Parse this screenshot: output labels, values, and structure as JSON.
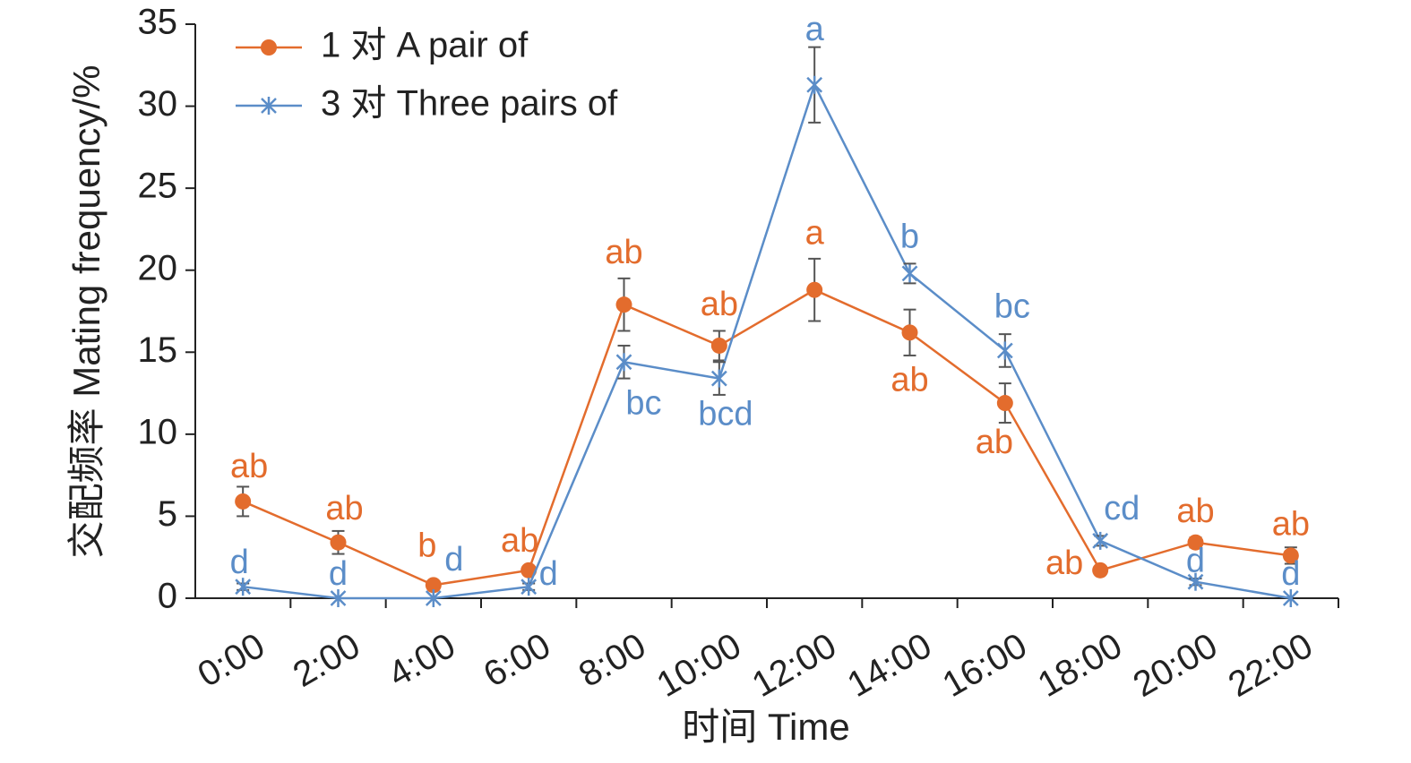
{
  "chart_data": {
    "type": "line",
    "x_label": "时间 Time",
    "y_label": "交配频率 Mating frequency/%",
    "categories": [
      "0:00",
      "2:00",
      "4:00",
      "6:00",
      "8:00",
      "10:00",
      "12:00",
      "14:00",
      "16:00",
      "18:00",
      "20:00",
      "22:00"
    ],
    "ylim": [
      0,
      35
    ],
    "yticks": [
      0,
      5,
      10,
      15,
      20,
      25,
      30,
      35
    ],
    "legend": "top-left",
    "series": [
      {
        "name": "1 对 A pair of",
        "color": "#e36c2d",
        "marker": "circle",
        "values": [
          5.9,
          3.4,
          0.8,
          1.7,
          17.9,
          15.4,
          18.8,
          16.2,
          11.9,
          1.7,
          3.4,
          2.6
        ],
        "errors": [
          0.9,
          0.7,
          0.2,
          0.2,
          1.6,
          0.9,
          1.9,
          1.4,
          1.2,
          0.2,
          0.3,
          0.5
        ],
        "labels": [
          "ab",
          "ab",
          "b",
          "ab",
          "ab",
          "ab",
          "a",
          "ab",
          "ab",
          "ab",
          "ab",
          "ab"
        ]
      },
      {
        "name": "3 对 Three pairs of",
        "color": "#5b8dc8",
        "marker": "asterisk",
        "values": [
          0.7,
          0,
          0,
          0.7,
          14.4,
          13.4,
          31.3,
          19.8,
          15.1,
          3.5,
          1.0,
          0
        ],
        "errors": [
          0.2,
          0,
          0,
          0.2,
          1.0,
          1.0,
          2.3,
          0.6,
          1.0,
          0.3,
          0.2,
          0
        ],
        "labels": [
          "d",
          "d",
          "d",
          "d",
          "bc",
          "bcd",
          "a",
          "b",
          "bc",
          "cd",
          "d",
          "d"
        ]
      }
    ]
  }
}
